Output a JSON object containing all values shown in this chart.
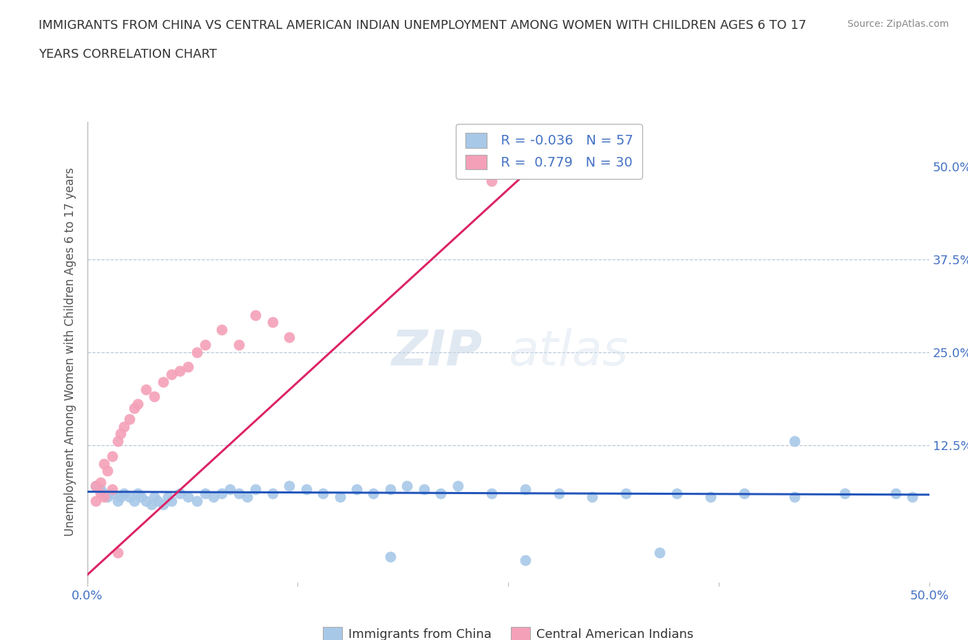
{
  "title_line1": "IMMIGRANTS FROM CHINA VS CENTRAL AMERICAN INDIAN UNEMPLOYMENT AMONG WOMEN WITH CHILDREN AGES 6 TO 17",
  "title_line2": "YEARS CORRELATION CHART",
  "source_text": "Source: ZipAtlas.com",
  "ylabel": "Unemployment Among Women with Children Ages 6 to 17 years",
  "xlim": [
    0.0,
    0.5
  ],
  "ylim": [
    -0.06,
    0.56
  ],
  "color_china": "#a8c8e8",
  "color_central": "#f4a0b8",
  "line_color_china": "#2255bb",
  "line_color_central": "#dd2266",
  "background_color": "#ffffff",
  "grid_color": "#b8c8d8",
  "legend_label_china": "Immigrants from China",
  "legend_label_central": "Central American Indians",
  "watermark_zip": "ZIP",
  "watermark_atlas": "atlas",
  "china_x": [
    0.005,
    0.008,
    0.01,
    0.012,
    0.015,
    0.018,
    0.02,
    0.022,
    0.025,
    0.028,
    0.03,
    0.032,
    0.035,
    0.038,
    0.04,
    0.042,
    0.045,
    0.048,
    0.05,
    0.055,
    0.06,
    0.065,
    0.07,
    0.075,
    0.08,
    0.085,
    0.09,
    0.095,
    0.1,
    0.11,
    0.12,
    0.13,
    0.14,
    0.15,
    0.16,
    0.17,
    0.18,
    0.19,
    0.2,
    0.21,
    0.22,
    0.24,
    0.26,
    0.28,
    0.3,
    0.32,
    0.35,
    0.37,
    0.39,
    0.42,
    0.45,
    0.48,
    0.49,
    0.34,
    0.26,
    0.18,
    0.42
  ],
  "china_y": [
    0.07,
    0.065,
    0.06,
    0.055,
    0.06,
    0.05,
    0.055,
    0.06,
    0.055,
    0.05,
    0.06,
    0.055,
    0.05,
    0.045,
    0.055,
    0.05,
    0.045,
    0.055,
    0.05,
    0.06,
    0.055,
    0.05,
    0.06,
    0.055,
    0.06,
    0.065,
    0.06,
    0.055,
    0.065,
    0.06,
    0.07,
    0.065,
    0.06,
    0.055,
    0.065,
    0.06,
    0.065,
    0.07,
    0.065,
    0.06,
    0.07,
    0.06,
    0.065,
    0.06,
    0.055,
    0.06,
    0.06,
    0.055,
    0.06,
    0.055,
    0.06,
    0.06,
    0.055,
    -0.02,
    -0.03,
    -0.025,
    0.13
  ],
  "central_x": [
    0.005,
    0.008,
    0.01,
    0.012,
    0.015,
    0.018,
    0.02,
    0.022,
    0.025,
    0.028,
    0.03,
    0.035,
    0.04,
    0.045,
    0.05,
    0.055,
    0.06,
    0.065,
    0.07,
    0.08,
    0.09,
    0.1,
    0.11,
    0.12,
    0.005,
    0.008,
    0.01,
    0.015,
    0.018,
    0.24
  ],
  "central_y": [
    0.07,
    0.075,
    0.1,
    0.09,
    0.11,
    0.13,
    0.14,
    0.15,
    0.16,
    0.175,
    0.18,
    0.2,
    0.19,
    0.21,
    0.22,
    0.225,
    0.23,
    0.25,
    0.26,
    0.28,
    0.26,
    0.3,
    0.29,
    0.27,
    0.05,
    0.06,
    0.055,
    0.065,
    -0.02,
    0.48
  ],
  "china_line_x": [
    0.0,
    0.5
  ],
  "china_line_y": [
    0.062,
    0.058
  ],
  "central_line_x": [
    0.0,
    0.265
  ],
  "central_line_y": [
    -0.05,
    0.5
  ]
}
